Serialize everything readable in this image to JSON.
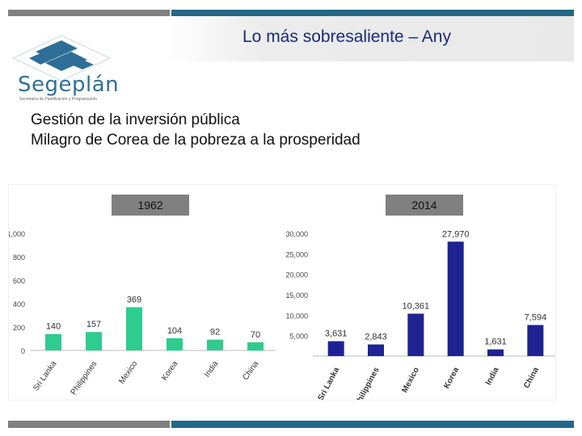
{
  "header": {
    "title": "Lo más sobresaliente – Any",
    "subtitle_line1": "Gestión de la inversión pública",
    "subtitle_line2": "Milagro de Corea de la pobreza a la prosperidad"
  },
  "logo": {
    "name": "Segeplán",
    "tagline": "Secretaría de Planificación y Programación"
  },
  "colors": {
    "teal_bar": "#2ecc8f",
    "navy_bar": "#1f2391",
    "grey_bar": "#808080",
    "accent_blue": "#2e6f97",
    "title_blue": "#1a2b78"
  },
  "chart_data": [
    {
      "type": "bar",
      "title": "1962",
      "categories": [
        "Sri Lanka",
        "Philippines",
        "Mexico",
        "Korea",
        "India",
        "China"
      ],
      "values": [
        140,
        157,
        369,
        104,
        92,
        70
      ],
      "data_labels": [
        "140",
        "157",
        "369",
        "104",
        "92",
        "70"
      ],
      "ylim": [
        0,
        1000
      ],
      "yticks": [
        0,
        200,
        400,
        600,
        800,
        1000
      ],
      "ytick_labels": [
        "0",
        "200",
        "400",
        "600",
        "800",
        "1,000"
      ],
      "highlight": "Mexico"
    },
    {
      "type": "bar",
      "title": "2014",
      "categories": [
        "Sri Lanka",
        "Philippines",
        "Mexico",
        "Korea",
        "India",
        "China"
      ],
      "values": [
        3631,
        2843,
        10361,
        27970,
        1631,
        7594
      ],
      "data_labels": [
        "3,631",
        "2,843",
        "10,361",
        "27,970",
        "1,631",
        "7,594"
      ],
      "ylim": [
        0,
        30000
      ],
      "yticks": [
        5000,
        10000,
        15000,
        20000,
        25000,
        30000
      ],
      "ytick_labels": [
        "5,000",
        "10,000",
        "15,000",
        "20,000",
        "25,000",
        "30,000"
      ],
      "highlight": "Korea"
    }
  ]
}
